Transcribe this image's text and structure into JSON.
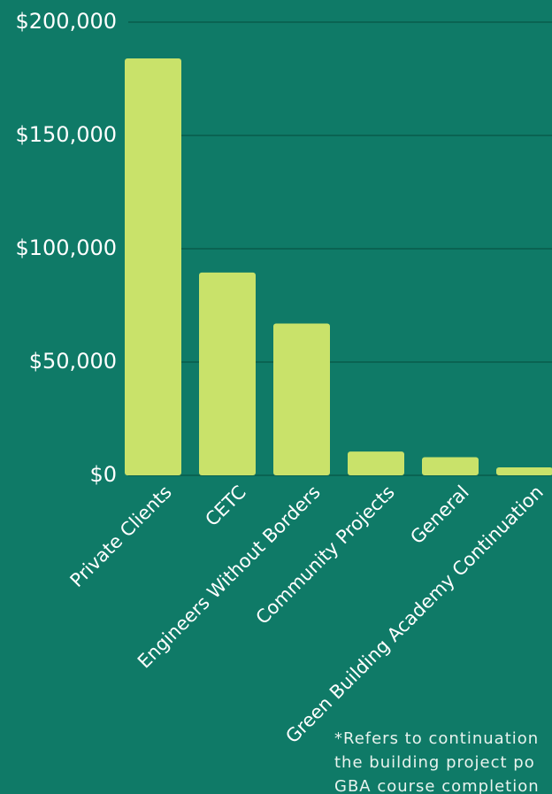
{
  "chart_data": {
    "type": "bar",
    "categories": [
      "Private Clients",
      "CETC",
      "Engineers Without Borders",
      "Community Projects",
      "General",
      "Green Building Academy Continuation"
    ],
    "values": [
      184000,
      89500,
      67000,
      10500,
      8000,
      3500
    ],
    "color": "#c9e26a",
    "ylim": [
      0,
      200000
    ],
    "yticks": [
      {
        "value": 0,
        "label": "$0"
      },
      {
        "value": 50000,
        "label": "$50,000"
      },
      {
        "value": 100000,
        "label": "$100,000"
      },
      {
        "value": 150000,
        "label": "$150,000"
      },
      {
        "value": 200000,
        "label": "$200,000"
      }
    ],
    "grid": true,
    "footnote": [
      "*Refers to continuation",
      "the  building project po",
      "GBA course completion"
    ]
  }
}
